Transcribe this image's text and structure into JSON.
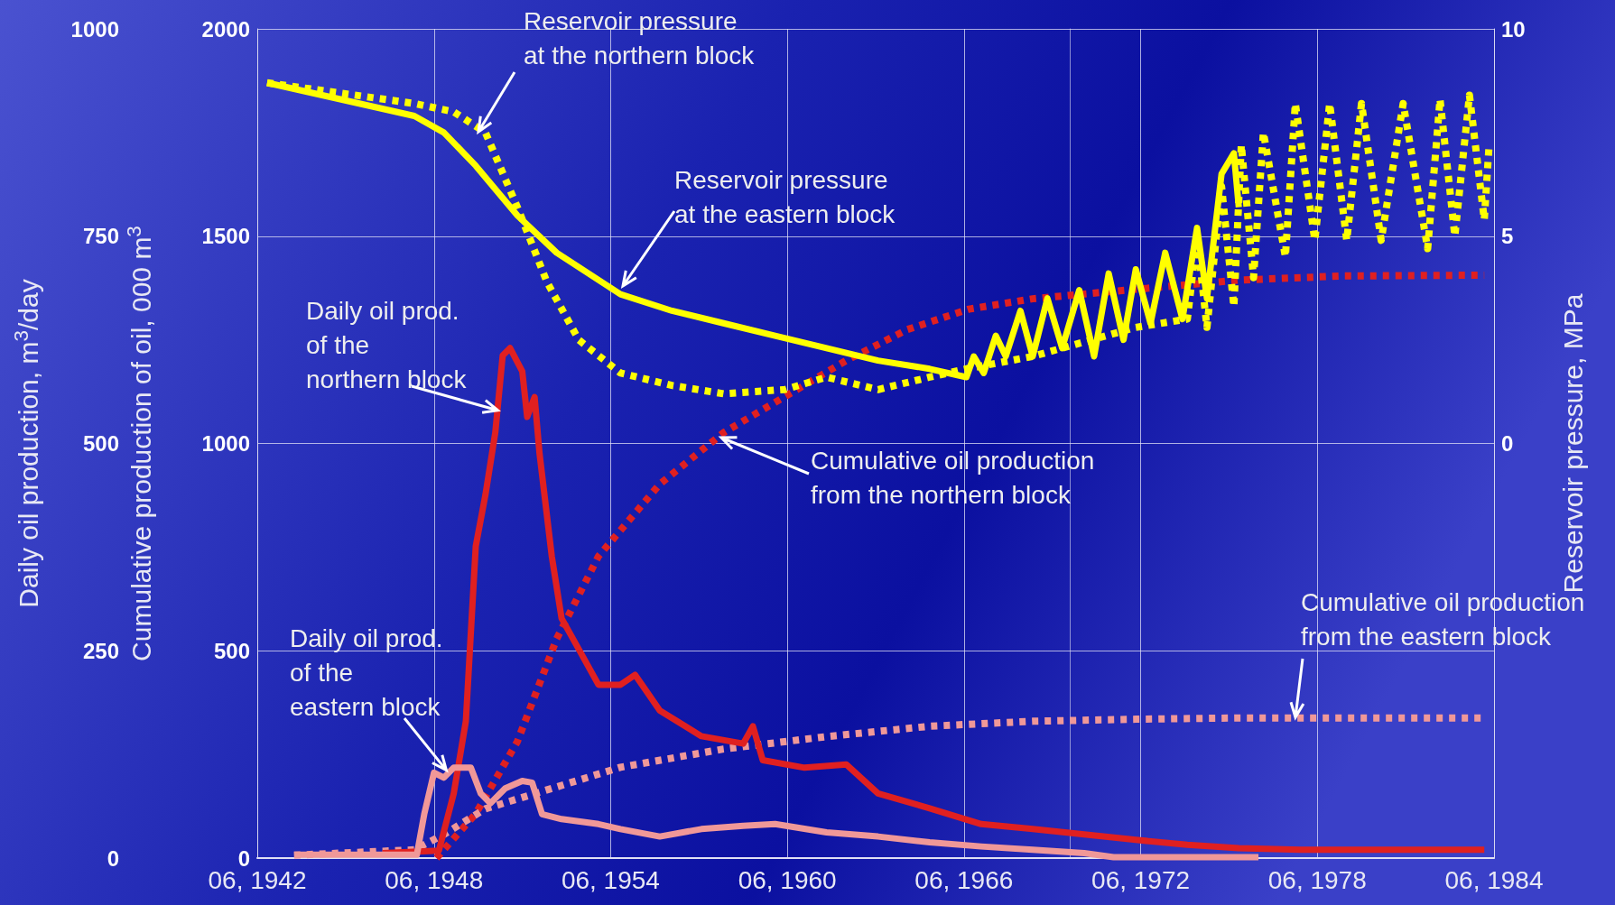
{
  "chart_data": {
    "type": "line",
    "xlim": [
      "1942-06",
      "1984-06"
    ],
    "xticks": [
      {
        "value": "1942-06",
        "label": "06, 1942"
      },
      {
        "value": "1948-06",
        "label": "06, 1948"
      },
      {
        "value": "1954-06",
        "label": "06, 1954"
      },
      {
        "value": "1960-06",
        "label": "06, 1960"
      },
      {
        "value": "1966-06",
        "label": "06, 1966"
      },
      {
        "value": "1972-06",
        "label": "06, 1972"
      },
      {
        "value": "1978-06",
        "label": "06, 1978"
      },
      {
        "value": "1984-06",
        "label": "06, 1984"
      }
    ],
    "ylabel": "Daily oil production, m$^{3}$/day",
    "ylim": [
      0,
      1000
    ],
    "yticks": [
      0,
      250,
      500,
      750,
      1000
    ],
    "y3label": "Cumulative production of oil, 000 m$^{3}$",
    "y3lim": [
      0,
      2000
    ],
    "y3ticks": [
      0,
      500,
      1000,
      1500,
      2000
    ],
    "y2label": "Reservoir pressure, MPa",
    "y2lim": [
      -10,
      10
    ],
    "y2ticks": [
      0,
      5,
      10
    ],
    "grid": true,
    "marker": "none",
    "series": [
      {
        "color": "#e02020",
        "line_style": "solid",
        "x": [
          "1946-09",
          "1948-08",
          "1949-02",
          "1949-07",
          "1949-11",
          "1950-03",
          "1950-07",
          "1950-10",
          "1951-01",
          "1951-06",
          "1951-08",
          "1951-11",
          "1952-01",
          "1952-06",
          "1952-10",
          "1953-05",
          "1954-01",
          "1954-10",
          "1955-04",
          "1956-02",
          "1957-07",
          "1958-12",
          "1959-04",
          "1959-08",
          "1961-01",
          "1962-06",
          "1963-07",
          "1965-04",
          "1967-01",
          "1968-10",
          "1972-04",
          "1974-01",
          "1975-10",
          "1977-11",
          "1984-02"
        ],
        "values": [
          6,
          9,
          78,
          165,
          376,
          438,
          513,
          606,
          615,
          587,
          532,
          556,
          488,
          364,
          289,
          252,
          209,
          209,
          221,
          178,
          147,
          138,
          159,
          118,
          109,
          113,
          78,
          60,
          41,
          35,
          22,
          16,
          12,
          10,
          10
        ]
      },
      {
        "color": "#f09898",
        "line_style": "solid",
        "x": [
          "1943-09",
          "1947-11",
          "1948-02",
          "1948-06",
          "1948-10",
          "1949-02",
          "1949-09",
          "1950-01",
          "1950-05",
          "1950-11",
          "1951-06",
          "1951-10",
          "1952-02",
          "1952-10",
          "1954-01",
          "1954-10",
          "1956-02",
          "1957-07",
          "1958-12",
          "1960-01",
          "1961-10",
          "1963-07",
          "1965-04",
          "1967-01",
          "1968-10",
          "1970-07",
          "1971-07",
          "1976-06"
        ],
        "values": [
          4,
          4,
          53,
          103,
          97,
          109,
          109,
          78,
          66,
          84,
          93,
          91,
          53,
          47,
          41,
          35,
          26,
          35,
          39,
          41,
          31,
          26,
          19,
          14,
          10,
          6,
          1,
          1
        ]
      },
      {
        "color": "#e02020",
        "line_style": "dotted",
        "axis": "y3",
        "x": [
          "1948-07",
          "1949-11",
          "1951-04",
          "1952-08",
          "1954-01",
          "1956-02",
          "1958-04",
          "1960-05",
          "1962-06",
          "1964-07",
          "1966-08",
          "1968-10",
          "1971-07",
          "1975-10",
          "1979-04",
          "1984-02"
        ],
        "values": [
          0,
          107,
          281,
          529,
          728,
          902,
          1026,
          1113,
          1200,
          1275,
          1324,
          1349,
          1367,
          1394,
          1404,
          1406
        ]
      },
      {
        "color": "#f09898",
        "line_style": "dotted",
        "axis": "y3",
        "x": [
          "1943-09",
          "1947-10",
          "1948-10",
          "1950-03",
          "1951-12",
          "1954-10",
          "1958-04",
          "1961-10",
          "1965-04",
          "1968-10",
          "1972-04",
          "1975-10",
          "1984-02"
        ],
        "values": [
          7,
          20,
          57,
          119,
          157,
          219,
          263,
          293,
          318,
          330,
          335,
          338,
          338
        ]
      },
      {
        "color": "#ffff00",
        "line_style": "dotted",
        "axis": "y2",
        "x": [
          "1942-10",
          "1947-10",
          "1949-02",
          "1950-03",
          "1951-04",
          "1952-04",
          "1953-05",
          "1954-10",
          "1956-07",
          "1958-04",
          "1960-05",
          "1961-10",
          "1963-07",
          "1965-04",
          "1966-07",
          "1968-10",
          "1972-04",
          "1974-01",
          "1974-05",
          "1974-09",
          "1975-03",
          "1975-08",
          "1975-11",
          "1976-04",
          "1976-08",
          "1977-05",
          "1977-09",
          "1978-05",
          "1978-11",
          "1979-06",
          "1979-12",
          "1980-08",
          "1981-05",
          "1982-03",
          "1982-08",
          "1983-02",
          "1983-08",
          "1984-02",
          "1984-04"
        ],
        "values": [
          8.7,
          8.2,
          8.0,
          7.5,
          5.7,
          3.9,
          2.5,
          1.7,
          1.4,
          1.2,
          1.3,
          1.6,
          1.3,
          1.6,
          1.8,
          2.1,
          2.8,
          3.0,
          5.0,
          2.8,
          6.2,
          3.3,
          7.2,
          4.0,
          7.5,
          4.5,
          8.2,
          4.9,
          8.2,
          4.9,
          8.2,
          4.9,
          8.2,
          4.7,
          8.3,
          5.0,
          8.4,
          5.4,
          7.2
        ]
      },
      {
        "color": "#ffff00",
        "line_style": "solid",
        "axis": "y2",
        "x": [
          "1942-10",
          "1947-10",
          "1948-10",
          "1949-11",
          "1951-04",
          "1952-08",
          "1954-10",
          "1956-07",
          "1958-04",
          "1960-01",
          "1961-10",
          "1963-07",
          "1965-04",
          "1966-07",
          "1966-10",
          "1967-02",
          "1967-07",
          "1967-11",
          "1968-05",
          "1968-10",
          "1969-04",
          "1969-10",
          "1970-05",
          "1970-11",
          "1971-05",
          "1971-11",
          "1972-04",
          "1972-10",
          "1973-04",
          "1973-11",
          "1974-05",
          "1974-09",
          "1975-03",
          "1975-08",
          "1975-10"
        ],
        "values": [
          8.7,
          7.9,
          7.5,
          6.7,
          5.5,
          4.6,
          3.6,
          3.2,
          2.9,
          2.6,
          2.3,
          2.0,
          1.8,
          1.6,
          2.1,
          1.7,
          2.6,
          2.1,
          3.2,
          2.1,
          3.5,
          2.3,
          3.7,
          2.1,
          4.1,
          2.5,
          4.2,
          2.9,
          4.6,
          3.0,
          5.2,
          3.5,
          6.5,
          7.0,
          5.7
        ]
      }
    ],
    "annotations": [
      "Reservoir pressure\nat the northern block",
      "Reservoir pressure\nat the eastern block",
      {
        "text": "Daily oil prod.\nof the\nnorthern block",
        "x": "1950-08",
        "y": 540
      },
      "Cumulative oil production\nfrom the northern block",
      "Cumulative oil production\nfrom the eastern block",
      {
        "text": "Daily oil prod.\nof the\neastern block",
        "x": "1948-11",
        "y": 106
      }
    ]
  }
}
